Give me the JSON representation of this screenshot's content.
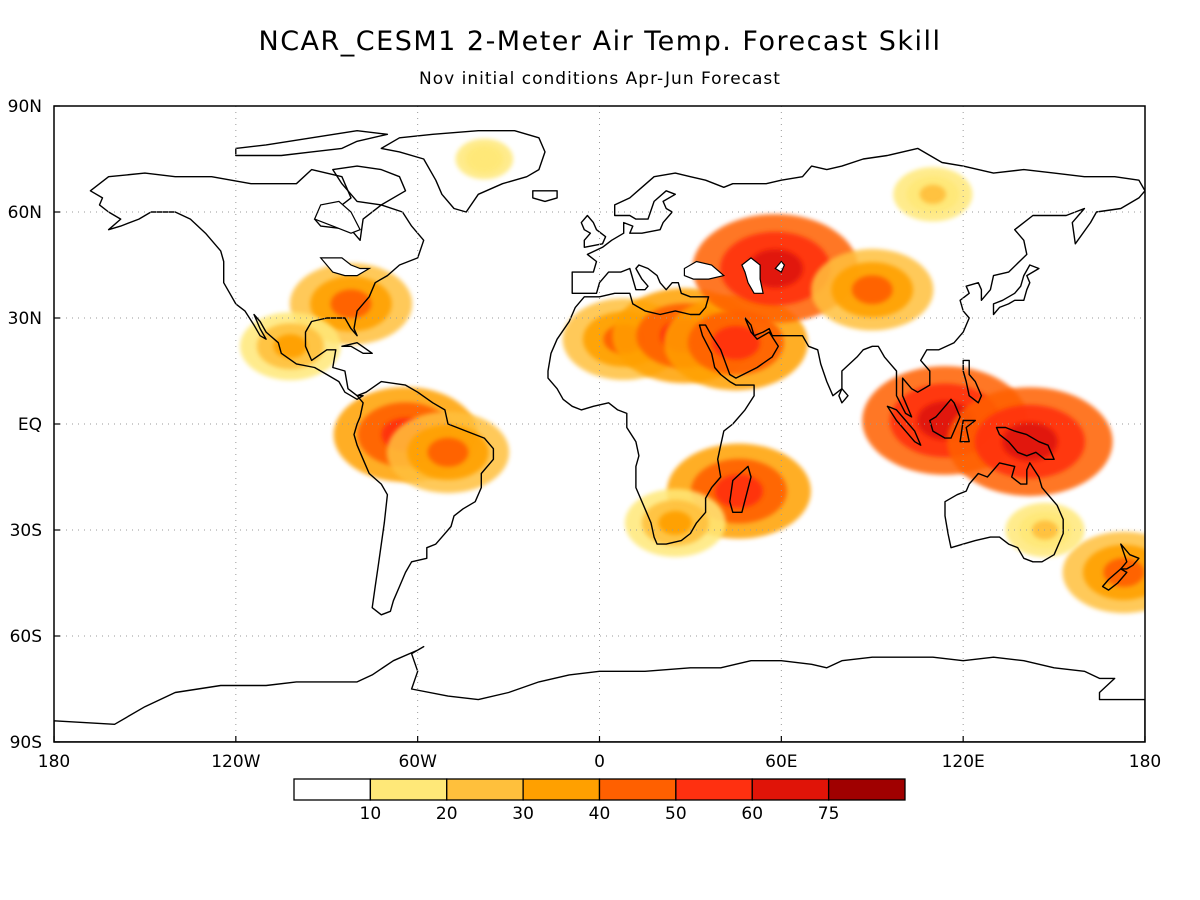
{
  "title": "NCAR_CESM1 2-Meter Air Temp. Forecast Skill",
  "subtitle": "Nov initial conditions  Apr-Jun Forecast",
  "map_axes": {
    "lon_ticks": [
      {
        "lon": -180,
        "label": "180"
      },
      {
        "lon": -120,
        "label": "120W"
      },
      {
        "lon": -60,
        "label": "60W"
      },
      {
        "lon": 0,
        "label": "0"
      },
      {
        "lon": 60,
        "label": "60E"
      },
      {
        "lon": 120,
        "label": "120E"
      },
      {
        "lon": 180,
        "label": "180"
      }
    ],
    "lat_ticks": [
      {
        "lat": 90,
        "label": "90N"
      },
      {
        "lat": 60,
        "label": "60N"
      },
      {
        "lat": 30,
        "label": "30N"
      },
      {
        "lat": 0,
        "label": "EQ"
      },
      {
        "lat": -30,
        "label": "30S"
      },
      {
        "lat": -60,
        "label": "60S"
      },
      {
        "lat": -90,
        "label": "90S"
      }
    ]
  },
  "colorbar": {
    "boundaries": [
      "10",
      "20",
      "30",
      "40",
      "50",
      "60",
      "75"
    ],
    "colors": [
      "#ffffff",
      "#ffe878",
      "#ffc03c",
      "#ffa000",
      "#ff6000",
      "#ff3010",
      "#e01408",
      "#a00000"
    ]
  },
  "skill_regions": [
    {
      "name": "amazon-core",
      "lon": -64,
      "lat": -3,
      "level": 5
    },
    {
      "name": "east-brazil",
      "lon": -50,
      "lat": -8,
      "level": 4
    },
    {
      "name": "sahara",
      "lon": 8,
      "lat": 24,
      "level": 4
    },
    {
      "name": "egypt",
      "lon": 28,
      "lat": 25,
      "level": 5
    },
    {
      "name": "arabia",
      "lon": 45,
      "lat": 23,
      "level": 5
    },
    {
      "name": "caspian-aral",
      "lon": 58,
      "lat": 44,
      "level": 6
    },
    {
      "name": "central-asia",
      "lon": 90,
      "lat": 38,
      "level": 4
    },
    {
      "name": "borneo",
      "lon": 114,
      "lat": 1,
      "level": 6
    },
    {
      "name": "new-guinea",
      "lon": 142,
      "lat": -5,
      "level": 6
    },
    {
      "name": "madagascar",
      "lon": 46,
      "lat": -19,
      "level": 5
    },
    {
      "name": "new-zealand",
      "lon": 173,
      "lat": -42,
      "level": 4
    },
    {
      "name": "east-us",
      "lon": -82,
      "lat": 34,
      "level": 4
    },
    {
      "name": "mexico",
      "lon": -102,
      "lat": 22,
      "level": 3
    },
    {
      "name": "siberia",
      "lon": 110,
      "lat": 65,
      "level": 2
    },
    {
      "name": "south-africa",
      "lon": 25,
      "lat": -28,
      "level": 3
    },
    {
      "name": "greenland",
      "lon": -38,
      "lat": 75,
      "level": 1
    },
    {
      "name": "australia-east",
      "lon": 147,
      "lat": -30,
      "level": 2
    }
  ]
}
